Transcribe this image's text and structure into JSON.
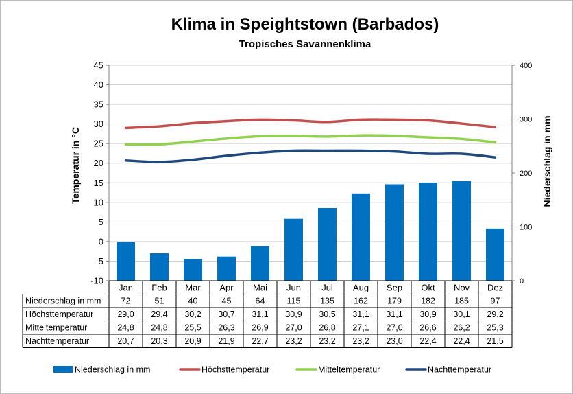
{
  "chart_data": {
    "type": "bar",
    "title": "Klima in Speightstown (Barbados)",
    "subtitle": "Tropisches Savannenklima",
    "ylabel": "Temperatur in °C",
    "y2label": "Niederschlag in mm",
    "ylim": [
      -10,
      45
    ],
    "y_ticks": [
      "45",
      "40",
      "35",
      "30",
      "25",
      "20",
      "15",
      "10",
      "5",
      "0",
      "-5",
      "-10"
    ],
    "y2lim": [
      0,
      400
    ],
    "y2_ticks": [
      "400",
      "300",
      "200",
      "100",
      "0"
    ],
    "grid": "horizontal",
    "legend_position": "bottom",
    "categories": [
      "Jan",
      "Feb",
      "Mar",
      "Apr",
      "Mai",
      "Jun",
      "Jul",
      "Aug",
      "Sep",
      "Okt",
      "Nov",
      "Dez"
    ],
    "series": [
      {
        "name": "Niederschlag in mm",
        "type": "bar",
        "axis": "right",
        "color": "#0070C0",
        "values": [
          72,
          51,
          40,
          45,
          64,
          115,
          135,
          162,
          179,
          182,
          185,
          97
        ],
        "labels": [
          "72",
          "51",
          "40",
          "45",
          "64",
          "115",
          "135",
          "162",
          "179",
          "182",
          "185",
          "97"
        ]
      },
      {
        "name": "Höchsttemperatur",
        "type": "line",
        "axis": "left",
        "color": "#C0504D",
        "values": [
          29.0,
          29.4,
          30.2,
          30.7,
          31.1,
          30.9,
          30.5,
          31.1,
          31.1,
          30.9,
          30.1,
          29.2
        ],
        "labels": [
          "29,0",
          "29,4",
          "30,2",
          "30,7",
          "31,1",
          "30,9",
          "30,5",
          "31,1",
          "31,1",
          "30,9",
          "30,1",
          "29,2"
        ]
      },
      {
        "name": "Mitteltemperatur",
        "type": "line",
        "axis": "left",
        "color": "#92D050",
        "values": [
          24.8,
          24.8,
          25.5,
          26.3,
          26.9,
          27.0,
          26.8,
          27.1,
          27.0,
          26.6,
          26.2,
          25.3
        ],
        "labels": [
          "24,8",
          "24,8",
          "25,5",
          "26,3",
          "26,9",
          "27,0",
          "26,8",
          "27,1",
          "27,0",
          "26,6",
          "26,2",
          "25,3"
        ]
      },
      {
        "name": "Nachttemperatur",
        "type": "line",
        "axis": "left",
        "color": "#1F497D",
        "values": [
          20.7,
          20.3,
          20.9,
          21.9,
          22.7,
          23.2,
          23.2,
          23.2,
          23.0,
          22.4,
          22.4,
          21.5
        ],
        "labels": [
          "20,7",
          "20,3",
          "20,9",
          "21,9",
          "22,7",
          "23,2",
          "23,2",
          "23,2",
          "23,0",
          "22,4",
          "22,4",
          "21,5"
        ]
      }
    ]
  }
}
